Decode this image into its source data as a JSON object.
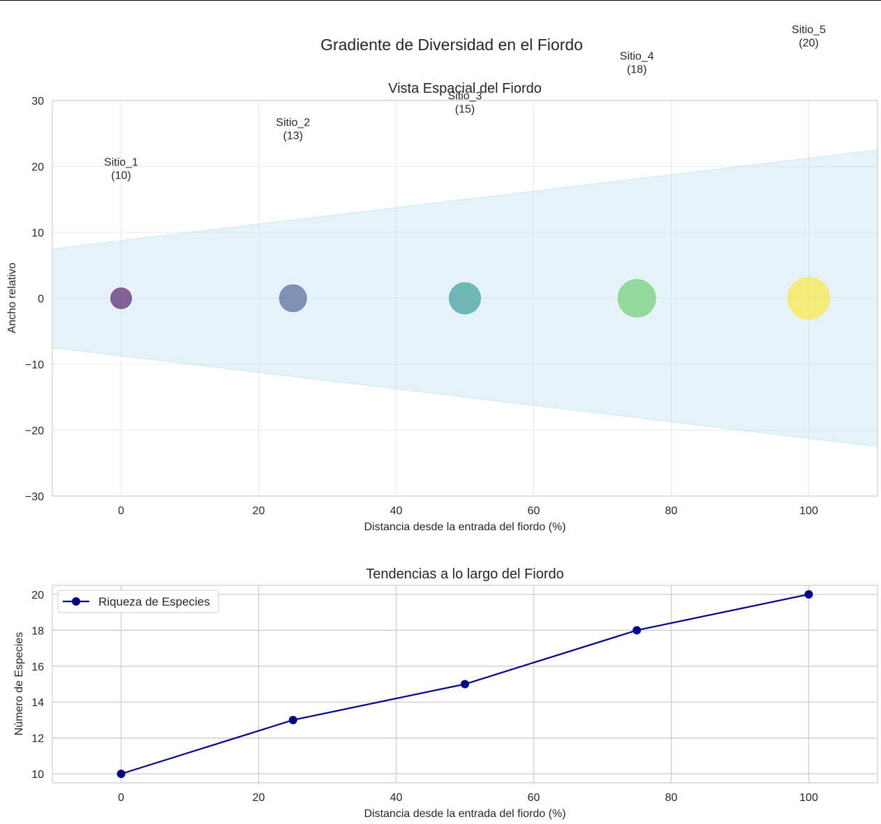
{
  "figure": {
    "suptitle": "Gradiente de Diversidad en el Fiordo"
  },
  "chart_data": [
    {
      "type": "scatter",
      "title": "Vista Espacial del Fiordo",
      "xlabel": "Distancia desde la entrada del fiordo (%)",
      "ylabel": "Ancho relativo",
      "xlim": [
        -10,
        110
      ],
      "ylim": [
        -30,
        30
      ],
      "xticks": [
        0,
        20,
        40,
        60,
        80,
        100
      ],
      "yticks": [
        -30,
        -20,
        -10,
        0,
        10,
        20,
        30
      ],
      "ytick_labels": [
        "−30",
        "−20",
        "−10",
        "0",
        "10",
        "20",
        "30"
      ],
      "grid": true,
      "fjord_band": {
        "x": [
          -10,
          110
        ],
        "upper": [
          7.5,
          22.5
        ],
        "lower": [
          -7.5,
          -22.5
        ],
        "color": "#add8e6"
      },
      "points": [
        {
          "name": "Sitio_1",
          "x": 0,
          "y": 0,
          "richness": 10,
          "label": "(10)",
          "color": "#440154"
        },
        {
          "name": "Sitio_2",
          "x": 25,
          "y": 0,
          "richness": 13,
          "label": "(13)",
          "color": "#3b528b"
        },
        {
          "name": "Sitio_3",
          "x": 50,
          "y": 0,
          "richness": 15,
          "label": "(15)",
          "color": "#21918c"
        },
        {
          "name": "Sitio_4",
          "x": 75,
          "y": 0,
          "richness": 18,
          "label": "(18)",
          "color": "#5ec962"
        },
        {
          "name": "Sitio_5",
          "x": 100,
          "y": 0,
          "richness": 20,
          "label": "(20)",
          "color": "#fde725"
        }
      ]
    },
    {
      "type": "line",
      "title": "Tendencias a lo largo del Fiordo",
      "xlabel": "Distancia desde la entrada del fiordo (%)",
      "ylabel": "Número de Especies",
      "xlim": [
        -10,
        110
      ],
      "ylim": [
        9.5,
        20.5
      ],
      "xticks": [
        0,
        20,
        40,
        60,
        80,
        100
      ],
      "yticks": [
        10,
        12,
        14,
        16,
        18,
        20
      ],
      "grid": true,
      "legend_position": "upper-left",
      "series": [
        {
          "name": "Riqueza de Especies",
          "color": "#00008b",
          "x": [
            0,
            25,
            50,
            75,
            100
          ],
          "y": [
            10,
            13,
            15,
            18,
            20
          ]
        }
      ]
    }
  ]
}
